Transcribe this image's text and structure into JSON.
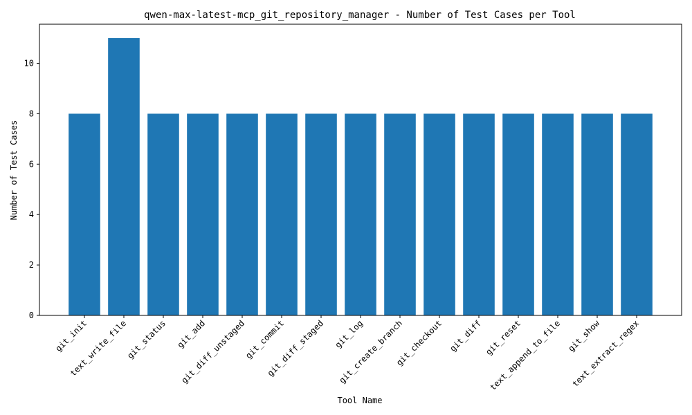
{
  "chart_data": {
    "type": "bar",
    "title": "qwen-max-latest-mcp_git_repository_manager - Number of Test Cases per Tool",
    "xlabel": "Tool Name",
    "ylabel": "Number of Test Cases",
    "categories": [
      "git_init",
      "text_write_file",
      "git_status",
      "git_add",
      "git_diff_unstaged",
      "git_commit",
      "git_diff_staged",
      "git_log",
      "git_create_branch",
      "git_checkout",
      "git_diff",
      "git_reset",
      "text_append_to_file",
      "git_show",
      "text_extract_regex"
    ],
    "values": [
      8,
      11,
      8,
      8,
      8,
      8,
      8,
      8,
      8,
      8,
      8,
      8,
      8,
      8,
      8
    ],
    "ylim": [
      0,
      11.55
    ],
    "yticks": [
      0,
      2,
      4,
      6,
      8,
      10
    ],
    "grid": false,
    "legend": "none",
    "bar_color": "#1f77b4",
    "axis_color": "#000000",
    "background_color": "#ffffff"
  }
}
